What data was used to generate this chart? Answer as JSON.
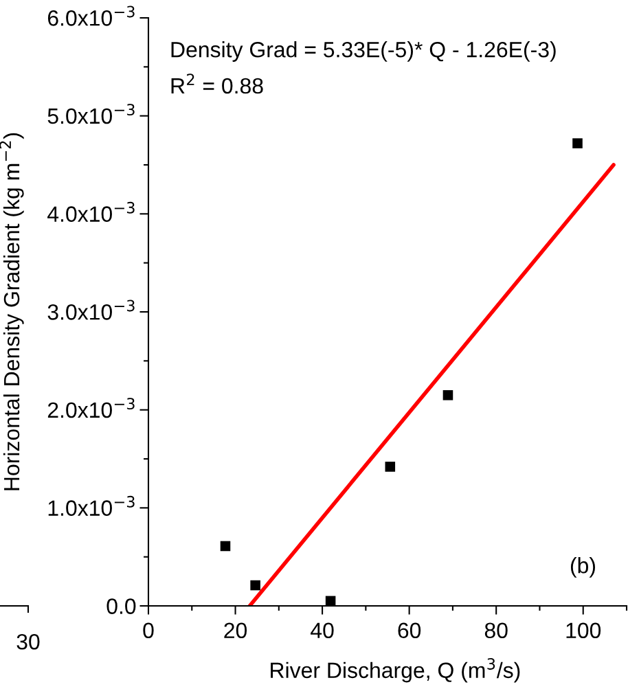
{
  "chart_data": {
    "type": "scatter",
    "xlabel": "River Discharge, Q (m$^{3}$/s)",
    "ylabel": "Horizontal Density Gradient (kg m$^{−2}$)",
    "x": [
      17.7,
      24.6,
      41.9,
      55.6,
      68.9,
      98.7
    ],
    "series": [
      {
        "color": "#000000",
        "marker": "square",
        "values": [
          0.00061,
          0.00021,
          5e-05,
          0.00142,
          0.00215,
          0.00472
        ]
      },
      {
        "type": "line",
        "color": "#ff0000",
        "marker": "none",
        "line_style": "solid",
        "x": [
          23.3,
          107
        ],
        "values": [
          0,
          0.0045
        ]
      }
    ],
    "xlim": [
      0,
      110
    ],
    "xticks": [
      0,
      {
        "value": 10,
        "label": null
      },
      20,
      {
        "value": 30,
        "label": null
      },
      40,
      {
        "value": 50,
        "label": null
      },
      60,
      {
        "value": 70,
        "label": null
      },
      80,
      {
        "value": 90,
        "label": null
      },
      100,
      {
        "value": 110,
        "label": null
      }
    ],
    "ylim": [
      0,
      0.006
    ],
    "yticks": [
      {
        "value": 0,
        "label": "0.0"
      },
      {
        "value": 0.0005,
        "label": null
      },
      {
        "value": 0.001,
        "label": "1.0x10$^{−3}$"
      },
      {
        "value": 0.0015,
        "label": null
      },
      {
        "value": 0.002,
        "label": "2.0x10$^{−3}$"
      },
      {
        "value": 0.0025,
        "label": null
      },
      {
        "value": 0.003,
        "label": "3.0x10$^{−3}$"
      },
      {
        "value": 0.0035,
        "label": null
      },
      {
        "value": 0.004,
        "label": "4.0x10$^{−3}$"
      },
      {
        "value": 0.0045,
        "label": null
      },
      {
        "value": 0.005,
        "label": "5.0x10$^{−3}$"
      },
      {
        "value": 0.0055,
        "label": null
      },
      {
        "value": 0.006,
        "label": "6.0x10$^{−3}$"
      }
    ],
    "grid": false,
    "annotations": [
      "Density Grad = 5.33E(-5)* Q - 1.26E(-3)",
      "R$^{2}$ = 0.88",
      "(b)",
      "30"
    ]
  }
}
